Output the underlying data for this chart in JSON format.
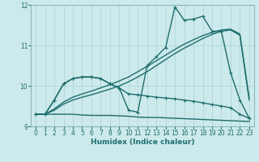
{
  "xlabel": "Humidex (Indice chaleur)",
  "bg_color": "#cce9eb",
  "grid_color": "#aad4d8",
  "line_color": "#1e6e6e",
  "xlim": [
    -0.5,
    23.5
  ],
  "ylim": [
    9,
    12
  ],
  "yticks": [
    9,
    10,
    11,
    12
  ],
  "xticks": [
    0,
    1,
    2,
    3,
    4,
    5,
    6,
    7,
    8,
    9,
    10,
    11,
    12,
    13,
    14,
    15,
    16,
    17,
    18,
    19,
    20,
    21,
    22,
    23
  ],
  "lines": [
    {
      "x": [
        0,
        1,
        2,
        3,
        4,
        5,
        6,
        7,
        8,
        9,
        10,
        11,
        12,
        13,
        14,
        15,
        16,
        17,
        18,
        19,
        20,
        21,
        22,
        23
      ],
      "y": [
        9.3,
        9.3,
        9.3,
        9.3,
        9.3,
        9.28,
        9.27,
        9.27,
        9.27,
        9.26,
        9.25,
        9.23,
        9.22,
        9.22,
        9.21,
        9.2,
        9.19,
        9.18,
        9.17,
        9.16,
        9.15,
        9.14,
        9.13,
        9.12
      ],
      "marker": false,
      "lw": 1.0
    },
    {
      "x": [
        0,
        1,
        2,
        3,
        4,
        5,
        6,
        7,
        8,
        9,
        10,
        11,
        12,
        13,
        14,
        15,
        16,
        17,
        18,
        19,
        20,
        21,
        22,
        23
      ],
      "y": [
        9.3,
        9.3,
        9.65,
        10.05,
        10.18,
        10.22,
        10.22,
        10.18,
        10.05,
        9.95,
        9.8,
        9.78,
        9.75,
        9.72,
        9.7,
        9.68,
        9.65,
        9.62,
        9.58,
        9.54,
        9.5,
        9.46,
        9.3,
        9.2
      ],
      "marker": true,
      "lw": 1.0
    },
    {
      "x": [
        0,
        1,
        2,
        3,
        4,
        5,
        6,
        7,
        8,
        9,
        10,
        11,
        12,
        13,
        14,
        15,
        16,
        17,
        18,
        19,
        20,
        21,
        22,
        23
      ],
      "y": [
        9.3,
        9.3,
        9.4,
        9.55,
        9.65,
        9.72,
        9.78,
        9.85,
        9.92,
        10.0,
        10.1,
        10.22,
        10.35,
        10.5,
        10.65,
        10.8,
        10.93,
        11.05,
        11.17,
        11.27,
        11.35,
        11.38,
        11.25,
        9.65
      ],
      "marker": false,
      "lw": 1.0
    },
    {
      "x": [
        0,
        1,
        2,
        3,
        4,
        5,
        6,
        7,
        8,
        9,
        10,
        11,
        12,
        13,
        14,
        15,
        16,
        17,
        18,
        19,
        20,
        21,
        22,
        23
      ],
      "y": [
        9.3,
        9.3,
        9.43,
        9.6,
        9.72,
        9.8,
        9.87,
        9.95,
        10.03,
        10.12,
        10.22,
        10.35,
        10.48,
        10.62,
        10.76,
        10.9,
        11.03,
        11.14,
        11.24,
        11.32,
        11.38,
        11.4,
        11.28,
        9.7
      ],
      "marker": false,
      "lw": 1.0
    },
    {
      "x": [
        0,
        1,
        2,
        3,
        4,
        5,
        6,
        7,
        8,
        9,
        10,
        11,
        12,
        13,
        14,
        15,
        16,
        17,
        18,
        19,
        20,
        21,
        22,
        23
      ],
      "y": [
        9.3,
        9.3,
        9.65,
        10.05,
        10.18,
        10.22,
        10.22,
        10.18,
        10.05,
        9.95,
        9.4,
        9.35,
        10.5,
        10.72,
        10.95,
        11.95,
        11.62,
        11.65,
        11.72,
        11.35,
        11.35,
        10.32,
        9.65,
        9.2
      ],
      "marker": true,
      "lw": 1.0
    }
  ]
}
